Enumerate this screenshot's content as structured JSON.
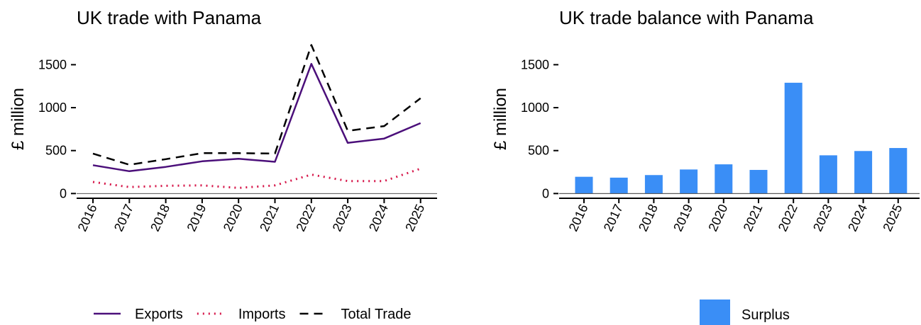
{
  "chart_data": [
    {
      "type": "line",
      "title": "UK trade with Panama",
      "ylabel": "£ million",
      "xlabel": "",
      "x": [
        "2016",
        "2017",
        "2018",
        "2019",
        "2020",
        "2021",
        "2022",
        "2023",
        "2024",
        "2025"
      ],
      "ylim": [
        -55,
        1800
      ],
      "yticks": [
        0,
        500,
        1000,
        1500
      ],
      "series": [
        {
          "name": "Exports",
          "color": "#4b0f7a",
          "style": "solid",
          "values": [
            330,
            260,
            310,
            375,
            405,
            370,
            1510,
            590,
            640,
            820
          ]
        },
        {
          "name": "Imports",
          "color": "#d6174a",
          "style": "dotted",
          "values": [
            135,
            75,
            90,
            95,
            65,
            95,
            220,
            145,
            145,
            290
          ]
        },
        {
          "name": "Total Trade",
          "color": "#000000",
          "style": "dashed",
          "values": [
            465,
            335,
            400,
            470,
            470,
            465,
            1730,
            730,
            785,
            1110
          ]
        }
      ],
      "legend_position": "bottom"
    },
    {
      "type": "bar",
      "title": "UK trade balance with Panama",
      "ylabel": "£ million",
      "xlabel": "",
      "categories": [
        "2016",
        "2017",
        "2018",
        "2019",
        "2020",
        "2021",
        "2022",
        "2023",
        "2024",
        "2025"
      ],
      "ylim": [
        -55,
        1800
      ],
      "yticks": [
        0,
        500,
        1000,
        1500
      ],
      "series": [
        {
          "name": "Surplus",
          "color": "#3a8ef6",
          "values": [
            195,
            185,
            215,
            280,
            340,
            275,
            1290,
            445,
            495,
            530
          ]
        }
      ],
      "legend_position": "bottom"
    }
  ]
}
